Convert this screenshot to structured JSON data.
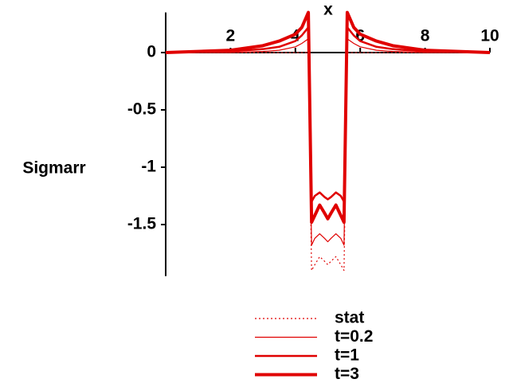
{
  "chart_data": {
    "type": "line",
    "x_label": "x",
    "y_label": "Sigmarr",
    "x": [
      0,
      2,
      3,
      3.5,
      4,
      4.2,
      4.4,
      4.5,
      4.6,
      4.75,
      4.9,
      5,
      5.1,
      5.25,
      5.4,
      5.5,
      5.6,
      5.8,
      6,
      6.5,
      7,
      8,
      10
    ],
    "series": [
      {
        "name": "stat",
        "color": "#e00000",
        "style": "dotted",
        "values": [
          0,
          0,
          0,
          0,
          0,
          0,
          0,
          -1.9,
          -1.85,
          -1.78,
          -1.82,
          -1.85,
          -1.82,
          -1.78,
          -1.85,
          -1.9,
          0,
          0,
          0,
          0,
          0,
          0,
          0
        ]
      },
      {
        "name": "t=0.2",
        "color": "#e00000",
        "values": [
          0,
          0,
          0.01,
          0.02,
          0.05,
          0.08,
          0.12,
          -1.68,
          -1.62,
          -1.58,
          -1.62,
          -1.65,
          -1.62,
          -1.58,
          -1.62,
          -1.68,
          0.12,
          0.08,
          0.05,
          0.02,
          0.01,
          0,
          0
        ]
      },
      {
        "name": "t=1",
        "color": "#e00000",
        "values": [
          0,
          0.01,
          0.03,
          0.05,
          0.1,
          0.15,
          0.22,
          -1.3,
          -1.25,
          -1.22,
          -1.26,
          -1.28,
          -1.26,
          -1.22,
          -1.25,
          -1.3,
          0.22,
          0.15,
          0.1,
          0.05,
          0.03,
          0.01,
          0
        ]
      },
      {
        "name": "t=3",
        "color": "#e00000",
        "values": [
          0,
          0.02,
          0.06,
          0.1,
          0.16,
          0.22,
          0.35,
          -1.48,
          -1.42,
          -1.33,
          -1.4,
          -1.45,
          -1.4,
          -1.33,
          -1.42,
          -1.48,
          0.35,
          0.22,
          0.16,
          0.1,
          0.06,
          0.02,
          0
        ]
      }
    ],
    "xlim": [
      0,
      10
    ],
    "xticks": [
      2,
      4,
      6,
      8,
      10
    ],
    "ylim": [
      -1.95,
      0.35
    ],
    "yticks": [
      0,
      -0.5,
      -1,
      -1.5
    ],
    "legend": "bottom"
  }
}
